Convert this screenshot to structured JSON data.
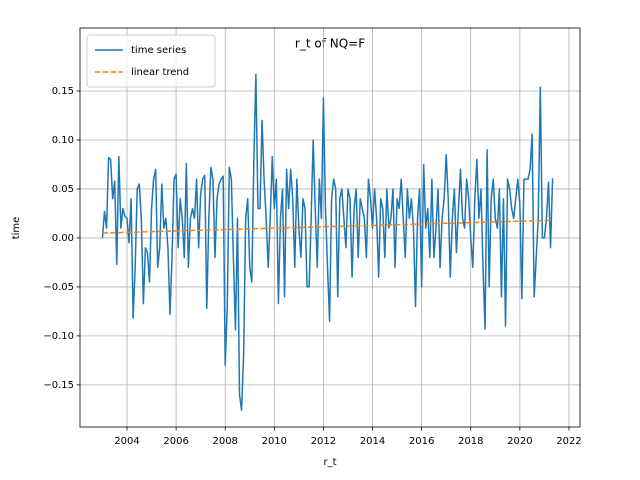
{
  "chart_data": {
    "type": "line",
    "title": "r_t of NQ=F",
    "x_label": "r_t",
    "y_label": "time",
    "xlim": [
      2002.086,
      2022.45
    ],
    "ylim": [
      -0.193,
      0.2143
    ],
    "xticks": [
      2004,
      2006,
      2008,
      2010,
      2012,
      2014,
      2016,
      2018,
      2020,
      2022
    ],
    "yticks": [
      {
        "value": -0.15,
        "label": "−0.15"
      },
      {
        "value": -0.1,
        "label": "−0.10"
      },
      {
        "value": -0.05,
        "label": "−0.05"
      },
      {
        "value": 0,
        "label": "0.00"
      },
      {
        "value": 0.05,
        "label": "0.05"
      },
      {
        "value": 0.1,
        "label": "0.10"
      },
      {
        "value": 0.15,
        "label": "0.15"
      }
    ],
    "grid": true,
    "legend": "upper left",
    "series": [
      {
        "name": "time series",
        "color": "#1f77b4",
        "linestyle": "solid",
        "x": [
          2003,
          2003.083,
          2003.167,
          2003.25,
          2003.333,
          2003.417,
          2003.5,
          2003.583,
          2003.667,
          2003.75,
          2003.833,
          2003.917,
          2004,
          2004.083,
          2004.167,
          2004.25,
          2004.333,
          2004.417,
          2004.5,
          2004.583,
          2004.667,
          2004.75,
          2004.833,
          2004.917,
          2005,
          2005.083,
          2005.167,
          2005.25,
          2005.333,
          2005.417,
          2005.5,
          2005.583,
          2005.667,
          2005.75,
          2005.833,
          2005.917,
          2006,
          2006.083,
          2006.167,
          2006.25,
          2006.333,
          2006.417,
          2006.5,
          2006.583,
          2006.667,
          2006.75,
          2006.833,
          2006.917,
          2007,
          2007.083,
          2007.167,
          2007.25,
          2007.333,
          2007.417,
          2007.5,
          2007.583,
          2007.667,
          2007.75,
          2007.833,
          2007.917,
          2008,
          2008.083,
          2008.167,
          2008.25,
          2008.333,
          2008.417,
          2008.5,
          2008.583,
          2008.667,
          2008.75,
          2008.833,
          2008.917,
          2009,
          2009.083,
          2009.167,
          2009.25,
          2009.333,
          2009.417,
          2009.5,
          2009.583,
          2009.667,
          2009.75,
          2009.833,
          2009.917,
          2010,
          2010.083,
          2010.167,
          2010.25,
          2010.333,
          2010.417,
          2010.5,
          2010.583,
          2010.667,
          2010.75,
          2010.833,
          2010.917,
          2011,
          2011.083,
          2011.167,
          2011.25,
          2011.333,
          2011.417,
          2011.5,
          2011.583,
          2011.667,
          2011.75,
          2011.833,
          2011.917,
          2012,
          2012.083,
          2012.167,
          2012.25,
          2012.333,
          2012.417,
          2012.5,
          2012.583,
          2012.667,
          2012.75,
          2012.833,
          2012.917,
          2013,
          2013.083,
          2013.167,
          2013.25,
          2013.333,
          2013.417,
          2013.5,
          2013.583,
          2013.667,
          2013.75,
          2013.833,
          2013.917,
          2014,
          2014.083,
          2014.167,
          2014.25,
          2014.333,
          2014.417,
          2014.5,
          2014.583,
          2014.667,
          2014.75,
          2014.833,
          2014.917,
          2015,
          2015.083,
          2015.167,
          2015.25,
          2015.333,
          2015.417,
          2015.5,
          2015.583,
          2015.667,
          2015.75,
          2015.833,
          2015.917,
          2016,
          2016.083,
          2016.167,
          2016.25,
          2016.333,
          2016.417,
          2016.5,
          2016.583,
          2016.667,
          2016.75,
          2016.833,
          2016.917,
          2017,
          2017.083,
          2017.167,
          2017.25,
          2017.333,
          2017.417,
          2017.5,
          2017.583,
          2017.667,
          2017.75,
          2017.833,
          2017.917,
          2018,
          2018.083,
          2018.167,
          2018.25,
          2018.333,
          2018.417,
          2018.5,
          2018.583,
          2018.667,
          2018.75,
          2018.833,
          2018.917,
          2019,
          2019.083,
          2019.167,
          2019.25,
          2019.333,
          2019.417,
          2019.5,
          2019.583,
          2019.667,
          2019.75,
          2019.833,
          2019.917,
          2020,
          2020.083,
          2020.167,
          2020.25,
          2020.333,
          2020.417,
          2020.5,
          2020.583,
          2020.667,
          2020.75,
          2020.833,
          2020.917,
          2021,
          2021.083,
          2021.167,
          2021.25,
          2021.333
        ],
        "values": [
          0.0,
          0.027,
          0.01,
          0.082,
          0.08,
          0.04,
          0.058,
          -0.027,
          0.083,
          0.01,
          0.03,
          0.022,
          0.02,
          -0.005,
          0.04,
          -0.082,
          -0.03,
          0.05,
          0.055,
          0.02,
          -0.067,
          -0.01,
          -0.015,
          -0.045,
          0.03,
          0.06,
          0.07,
          -0.03,
          -0.01,
          0.055,
          0.01,
          0.02,
          -0.01,
          -0.078,
          -0.02,
          0.06,
          0.065,
          -0.01,
          0.04,
          0.02,
          -0.02,
          0.076,
          -0.03,
          0.02,
          0.03,
          0.02,
          0.06,
          -0.01,
          0.045,
          0.06,
          0.064,
          -0.072,
          0.02,
          0.072,
          0.06,
          -0.02,
          0.04,
          0.055,
          0.06,
          0.063,
          -0.13,
          -0.07,
          0.072,
          0.06,
          -0.02,
          -0.094,
          0.02,
          -0.16,
          -0.176,
          -0.12,
          0.02,
          0.04,
          -0.03,
          -0.045,
          0.08,
          0.167,
          0.03,
          0.03,
          0.12,
          0.06,
          0.02,
          -0.03,
          0.02,
          0.083,
          0.03,
          0.06,
          -0.067,
          0.02,
          0.05,
          -0.06,
          0.07,
          0.03,
          0.07,
          0.04,
          -0.03,
          0.06,
          0.01,
          -0.02,
          0.04,
          0.03,
          -0.05,
          -0.05,
          0.02,
          0.1,
          0.03,
          -0.03,
          0.06,
          0.02,
          0.143,
          0.03,
          -0.03,
          -0.085,
          0.04,
          0.06,
          0.05,
          -0.06,
          0.04,
          0.05,
          0.02,
          -0.01,
          0.05,
          0.04,
          -0.04,
          0.03,
          0.05,
          -0.02,
          0.04,
          0.03,
          0.02,
          -0.02,
          0.06,
          0.04,
          0.01,
          0.05,
          0.02,
          -0.04,
          0.04,
          0.03,
          -0.02,
          0.05,
          0.01,
          0.02,
          0.05,
          -0.03,
          0.04,
          0.03,
          0.06,
          0.02,
          -0.02,
          0.05,
          0.02,
          0.04,
          0.01,
          -0.07,
          0.02,
          0.05,
          -0.05,
          0.075,
          0.01,
          0.03,
          -0.02,
          0.06,
          -0.02,
          0.01,
          0.05,
          -0.03,
          0.02,
          0.04,
          0.085,
          0.04,
          -0.04,
          0.02,
          0.05,
          -0.015,
          0.03,
          0.07,
          0.02,
          0.01,
          0.06,
          0.04,
          0.0,
          -0.03,
          0.04,
          0.08,
          0.02,
          0.05,
          -0.03,
          -0.093,
          0.09,
          -0.05,
          0.04,
          0.06,
          0.02,
          0.01,
          0.05,
          -0.06,
          0.04,
          -0.09,
          0.06,
          0.05,
          0.03,
          0.02,
          0.04,
          0.06,
          0.035,
          -0.062,
          0.06,
          0.06,
          0.06,
          0.07,
          0.106,
          -0.06,
          -0.02,
          0.02,
          0.154,
          0.0,
          0.0,
          0.02,
          0.057,
          -0.01,
          0.061
        ]
      },
      {
        "name": "linear trend",
        "color": "#ff7f0e",
        "linestyle": "dashed",
        "x": [
          2003,
          2021.333
        ],
        "values": [
          0.005,
          0.018
        ]
      }
    ]
  }
}
